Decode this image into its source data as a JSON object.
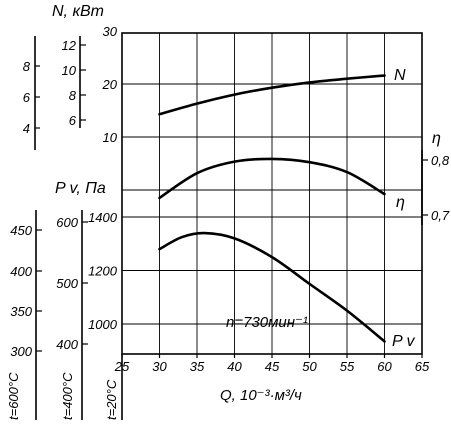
{
  "chart_data": {
    "type": "line",
    "annotation": "n=730мин⁻¹",
    "x_axis": {
      "label": "Q, 10⁻³·м³/ч",
      "range": [
        25,
        65
      ],
      "ticks": [
        25,
        30,
        35,
        40,
        45,
        50,
        55,
        60,
        65
      ]
    },
    "power_axis": {
      "label": "N, кВт",
      "range": [
        0,
        30
      ],
      "main_ticks": [
        10,
        20,
        30
      ],
      "aux_scales": [
        {
          "ticks": [
            6,
            8,
            10,
            12
          ]
        },
        {
          "ticks": [
            4,
            6,
            8
          ]
        }
      ]
    },
    "efficiency_axis": {
      "label": "η",
      "ticks": [
        "0,8",
        "0,7"
      ]
    },
    "pressure_axis": {
      "label": "P v, Па",
      "range": [
        900,
        1500
      ],
      "main_ticks": [
        1000,
        1200,
        1400
      ],
      "temperature_scales": [
        {
          "label": "t=20°C",
          "ticks": []
        },
        {
          "label": "t=400°C",
          "ticks": [
            400,
            500,
            600
          ]
        },
        {
          "label": "t=600°C",
          "ticks": [
            300,
            350,
            400,
            450
          ]
        }
      ]
    },
    "series": [
      {
        "name": "N",
        "x": [
          30,
          35,
          40,
          45,
          50,
          55,
          60
        ],
        "y": [
          14.3,
          16.3,
          18,
          19.3,
          20.3,
          21,
          21.6
        ]
      },
      {
        "name": "η",
        "x": [
          30,
          35,
          40,
          45,
          50,
          55,
          60
        ],
        "y": [
          0.731,
          0.776,
          0.797,
          0.802,
          0.796,
          0.778,
          0.738
        ]
      },
      {
        "name": "P v",
        "x": [
          30,
          33,
          36,
          40,
          45,
          50,
          55,
          60
        ],
        "y": [
          1280,
          1325,
          1340,
          1320,
          1250,
          1150,
          1050,
          935
        ]
      }
    ],
    "grid": true
  }
}
